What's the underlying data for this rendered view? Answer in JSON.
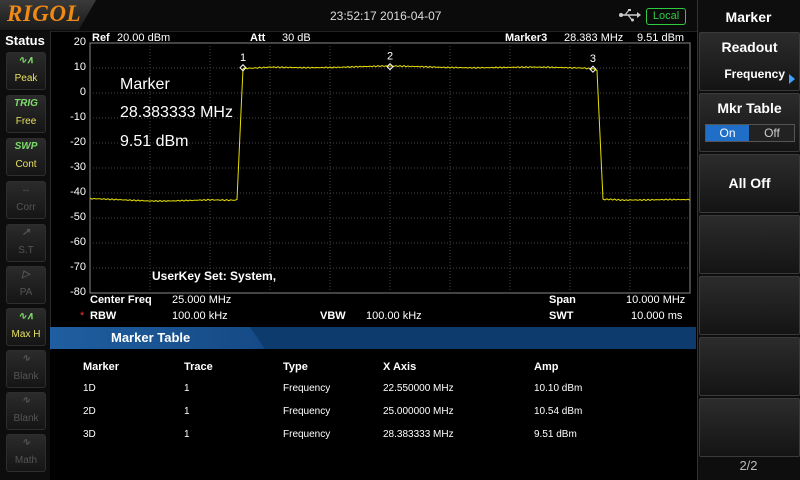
{
  "brand": "RIGOL",
  "datetime": "23:52:17 2016-04-07",
  "status_badge": "Local",
  "status_panel": {
    "title": "Status",
    "buttons": [
      {
        "icon": "peak-icon",
        "glyph": "∿∧",
        "label": "Peak",
        "active": true
      },
      {
        "icon": "trig-icon",
        "glyph": "TRIG",
        "label": "Free",
        "active": true
      },
      {
        "icon": "swp-icon",
        "glyph": "SWP",
        "label": "Cont",
        "active": true
      },
      {
        "icon": "corr-icon",
        "glyph": "↔",
        "label": "Corr",
        "active": false
      },
      {
        "icon": "st-icon",
        "glyph": "↗",
        "label": "S.T",
        "active": false
      },
      {
        "icon": "pa-icon",
        "glyph": "▷",
        "label": "PA",
        "active": false
      },
      {
        "icon": "maxhold-icon",
        "glyph": "∿∧",
        "label": "Max H",
        "active": true
      },
      {
        "icon": "blank-icon",
        "glyph": "∿",
        "label": "Blank",
        "active": false
      },
      {
        "icon": "blank-icon",
        "glyph": "∿",
        "label": "Blank",
        "active": false
      },
      {
        "icon": "math-icon",
        "glyph": "∿",
        "label": "Math",
        "active": false
      }
    ]
  },
  "header": {
    "ref_label": "Ref",
    "ref_value": "20.00 dBm",
    "att_label": "Att",
    "att_value": "30 dB",
    "marker_label": "Marker3",
    "marker_freq": "28.383 MHz",
    "marker_amp": "9.51 dBm"
  },
  "marker_overlay": {
    "title": "Marker",
    "freq": "28.383333 MHz",
    "amp": "9.51 dBm"
  },
  "userkey": "UserKey Set:   System,",
  "y_axis_labels": [
    "20",
    "10",
    "0",
    "-10",
    "-20",
    "-30",
    "-40",
    "-50",
    "-60",
    "-70",
    "-80"
  ],
  "sweep_info": {
    "center_label": "Center Freq",
    "center_value": "25.000 MHz",
    "span_label": "Span",
    "span_value": "10.000 MHz",
    "rbw_star": "*",
    "rbw_label": "RBW",
    "rbw_value": "100.00 kHz",
    "vbw_label": "VBW",
    "vbw_value": "100.00 kHz",
    "swt_label": "SWT",
    "swt_value": "10.000 ms"
  },
  "chart_data": {
    "type": "line",
    "ylim": [
      -80,
      20
    ],
    "xlim": [
      20.0,
      30.0
    ],
    "trace_color": "#e8e000",
    "x": [
      20.0,
      21.0,
      22.0,
      22.45,
      22.55,
      23.0,
      24.0,
      25.0,
      26.0,
      27.0,
      28.0,
      28.383,
      28.45,
      28.55,
      29.0,
      30.0
    ],
    "y": [
      -42.5,
      -43.0,
      -42.8,
      -42.6,
      10.1,
      10.3,
      10.4,
      10.54,
      10.4,
      10.2,
      10.0,
      9.51,
      9.0,
      -42.8,
      -42.6,
      -42.9
    ],
    "markers": [
      {
        "id": "1",
        "x": 22.55,
        "y": 10.1
      },
      {
        "id": "2",
        "x": 25.0,
        "y": 10.54
      },
      {
        "id": "3",
        "x": 28.383,
        "y": 9.51
      }
    ]
  },
  "marker_table": {
    "title": "Marker Table",
    "columns": [
      "Marker",
      "Trace",
      "Type",
      "X Axis",
      "Amp"
    ],
    "rows": [
      [
        "1D",
        "1",
        "Frequency",
        "22.550000 MHz",
        "10.10 dBm"
      ],
      [
        "2D",
        "1",
        "Frequency",
        "25.000000 MHz",
        "10.54 dBm"
      ],
      [
        "3D",
        "1",
        "Frequency",
        "28.383333 MHz",
        "9.51 dBm"
      ]
    ]
  },
  "menu": {
    "title": "Marker",
    "readout_label": "Readout",
    "readout_value": "Frequency",
    "mkr_table_label": "Mkr Table",
    "on_label": "On",
    "off_label": "Off",
    "all_off_label": "All Off",
    "page": "2/2"
  }
}
